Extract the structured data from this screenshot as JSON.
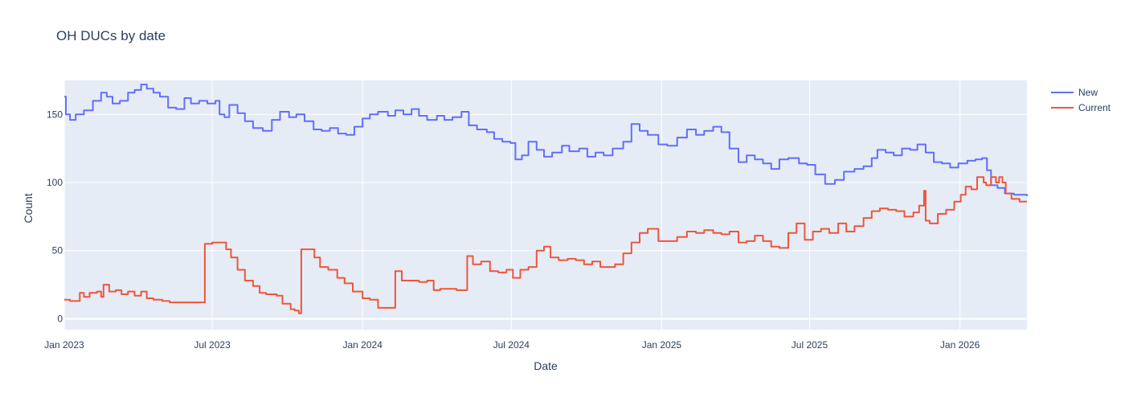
{
  "chart_data": {
    "type": "line",
    "title": "OH DUCs by date",
    "xlabel": "Date",
    "ylabel": "Count",
    "xlim": [
      "2023-01-01",
      "2026-03-24"
    ],
    "ylim": [
      -8,
      175
    ],
    "x_ticks": [
      {
        "date": "2023-01-01",
        "label": "Jan 2023"
      },
      {
        "date": "2023-07-01",
        "label": "Jul 2023"
      },
      {
        "date": "2024-01-01",
        "label": "Jan 2024"
      },
      {
        "date": "2024-07-01",
        "label": "Jul 2024"
      },
      {
        "date": "2025-01-01",
        "label": "Jan 2025"
      },
      {
        "date": "2025-07-01",
        "label": "Jul 2025"
      },
      {
        "date": "2026-01-01",
        "label": "Jan 2026"
      }
    ],
    "y_ticks": [
      0,
      50,
      100,
      150
    ],
    "grid": true,
    "legend_position": "top-right",
    "series": [
      {
        "name": "New",
        "color": "#636efa",
        "points": [
          [
            "2023-01-01",
            163
          ],
          [
            "2023-01-03",
            150
          ],
          [
            "2023-01-08",
            146
          ],
          [
            "2023-01-15",
            150
          ],
          [
            "2023-01-25",
            153
          ],
          [
            "2023-02-05",
            160
          ],
          [
            "2023-02-15",
            166
          ],
          [
            "2023-02-22",
            163
          ],
          [
            "2023-03-01",
            158
          ],
          [
            "2023-03-10",
            160
          ],
          [
            "2023-03-20",
            166
          ],
          [
            "2023-03-28",
            168
          ],
          [
            "2023-04-05",
            172
          ],
          [
            "2023-04-12",
            169
          ],
          [
            "2023-04-20",
            166
          ],
          [
            "2023-04-28",
            163
          ],
          [
            "2023-05-08",
            155
          ],
          [
            "2023-05-18",
            154
          ],
          [
            "2023-05-28",
            162
          ],
          [
            "2023-06-05",
            158
          ],
          [
            "2023-06-15",
            160
          ],
          [
            "2023-06-25",
            158
          ],
          [
            "2023-07-05",
            160
          ],
          [
            "2023-07-10",
            150
          ],
          [
            "2023-07-16",
            148
          ],
          [
            "2023-07-22",
            157
          ],
          [
            "2023-08-01",
            151
          ],
          [
            "2023-08-10",
            145
          ],
          [
            "2023-08-20",
            140
          ],
          [
            "2023-09-01",
            138
          ],
          [
            "2023-09-12",
            146
          ],
          [
            "2023-09-22",
            152
          ],
          [
            "2023-10-03",
            148
          ],
          [
            "2023-10-12",
            150
          ],
          [
            "2023-10-22",
            145
          ],
          [
            "2023-11-02",
            139
          ],
          [
            "2023-11-12",
            138
          ],
          [
            "2023-11-22",
            140
          ],
          [
            "2023-12-02",
            136
          ],
          [
            "2023-12-12",
            135
          ],
          [
            "2023-12-22",
            141
          ],
          [
            "2024-01-01",
            147
          ],
          [
            "2024-01-10",
            150
          ],
          [
            "2024-01-20",
            152
          ],
          [
            "2024-02-01",
            149
          ],
          [
            "2024-02-10",
            153
          ],
          [
            "2024-02-20",
            150
          ],
          [
            "2024-03-01",
            154
          ],
          [
            "2024-03-10",
            149
          ],
          [
            "2024-03-20",
            146
          ],
          [
            "2024-04-01",
            149
          ],
          [
            "2024-04-10",
            146
          ],
          [
            "2024-04-20",
            148
          ],
          [
            "2024-05-01",
            152
          ],
          [
            "2024-05-10",
            142
          ],
          [
            "2024-05-20",
            139
          ],
          [
            "2024-06-01",
            137
          ],
          [
            "2024-06-10",
            132
          ],
          [
            "2024-06-20",
            130
          ],
          [
            "2024-06-30",
            129
          ],
          [
            "2024-07-06",
            117
          ],
          [
            "2024-07-14",
            120
          ],
          [
            "2024-07-22",
            130
          ],
          [
            "2024-08-01",
            124
          ],
          [
            "2024-08-10",
            119
          ],
          [
            "2024-08-20",
            122
          ],
          [
            "2024-09-01",
            127
          ],
          [
            "2024-09-10",
            123
          ],
          [
            "2024-09-22",
            125
          ],
          [
            "2024-10-02",
            119
          ],
          [
            "2024-10-12",
            122
          ],
          [
            "2024-10-22",
            120
          ],
          [
            "2024-11-02",
            125
          ],
          [
            "2024-11-15",
            130
          ],
          [
            "2024-11-25",
            143
          ],
          [
            "2024-12-05",
            138
          ],
          [
            "2024-12-15",
            135
          ],
          [
            "2024-12-28",
            128
          ],
          [
            "2025-01-08",
            127
          ],
          [
            "2025-01-20",
            133
          ],
          [
            "2025-02-01",
            139
          ],
          [
            "2025-02-12",
            135
          ],
          [
            "2025-02-22",
            138
          ],
          [
            "2025-03-05",
            141
          ],
          [
            "2025-03-15",
            137
          ],
          [
            "2025-03-25",
            125
          ],
          [
            "2025-04-05",
            115
          ],
          [
            "2025-04-15",
            120
          ],
          [
            "2025-04-25",
            117
          ],
          [
            "2025-05-05",
            114
          ],
          [
            "2025-05-15",
            110
          ],
          [
            "2025-05-25",
            117
          ],
          [
            "2025-06-05",
            118
          ],
          [
            "2025-06-18",
            114
          ],
          [
            "2025-06-28",
            113
          ],
          [
            "2025-07-08",
            106
          ],
          [
            "2025-07-20",
            99
          ],
          [
            "2025-08-01",
            102
          ],
          [
            "2025-08-12",
            108
          ],
          [
            "2025-08-25",
            110
          ],
          [
            "2025-09-05",
            112
          ],
          [
            "2025-09-15",
            118
          ],
          [
            "2025-09-22",
            124
          ],
          [
            "2025-10-02",
            122
          ],
          [
            "2025-10-12",
            120
          ],
          [
            "2025-10-22",
            125
          ],
          [
            "2025-11-01",
            124
          ],
          [
            "2025-11-10",
            128
          ],
          [
            "2025-11-20",
            122
          ],
          [
            "2025-11-30",
            115
          ],
          [
            "2025-12-10",
            114
          ],
          [
            "2025-12-20",
            111
          ],
          [
            "2025-12-30",
            114
          ],
          [
            "2026-01-10",
            116
          ],
          [
            "2026-01-20",
            117
          ],
          [
            "2026-01-28",
            118
          ],
          [
            "2026-02-03",
            109
          ],
          [
            "2026-02-08",
            98
          ],
          [
            "2026-02-16",
            96
          ],
          [
            "2026-02-25",
            92
          ],
          [
            "2026-03-08",
            91
          ],
          [
            "2026-03-24",
            90
          ]
        ]
      },
      {
        "name": "Current",
        "color": "#ef553b",
        "points": [
          [
            "2023-01-01",
            14
          ],
          [
            "2023-01-06",
            14
          ],
          [
            "2023-01-08",
            13
          ],
          [
            "2023-01-15",
            13
          ],
          [
            "2023-01-20",
            19
          ],
          [
            "2023-01-25",
            16
          ],
          [
            "2023-02-01",
            19
          ],
          [
            "2023-02-10",
            20
          ],
          [
            "2023-02-15",
            16
          ],
          [
            "2023-02-18",
            25
          ],
          [
            "2023-02-25",
            20
          ],
          [
            "2023-03-05",
            21
          ],
          [
            "2023-03-12",
            18
          ],
          [
            "2023-03-20",
            20
          ],
          [
            "2023-03-28",
            17
          ],
          [
            "2023-04-05",
            20
          ],
          [
            "2023-04-12",
            15
          ],
          [
            "2023-04-20",
            14
          ],
          [
            "2023-05-01",
            13
          ],
          [
            "2023-05-10",
            12
          ],
          [
            "2023-05-20",
            12
          ],
          [
            "2023-06-01",
            12
          ],
          [
            "2023-06-10",
            12
          ],
          [
            "2023-06-20",
            12
          ],
          [
            "2023-06-22",
            55
          ],
          [
            "2023-07-01",
            56
          ],
          [
            "2023-07-12",
            56
          ],
          [
            "2023-07-18",
            51
          ],
          [
            "2023-07-24",
            45
          ],
          [
            "2023-08-01",
            36
          ],
          [
            "2023-08-10",
            28
          ],
          [
            "2023-08-20",
            24
          ],
          [
            "2023-08-28",
            19
          ],
          [
            "2023-09-05",
            18
          ],
          [
            "2023-09-18",
            17
          ],
          [
            "2023-09-25",
            11
          ],
          [
            "2023-10-05",
            7
          ],
          [
            "2023-10-10",
            6
          ],
          [
            "2023-10-15",
            4
          ],
          [
            "2023-10-18",
            51
          ],
          [
            "2023-10-26",
            51
          ],
          [
            "2023-11-03",
            45
          ],
          [
            "2023-11-10",
            38
          ],
          [
            "2023-11-20",
            36
          ],
          [
            "2023-12-01",
            30
          ],
          [
            "2023-12-10",
            26
          ],
          [
            "2023-12-20",
            20
          ],
          [
            "2024-01-01",
            15
          ],
          [
            "2024-01-10",
            14
          ],
          [
            "2024-01-20",
            8
          ],
          [
            "2024-02-01",
            8
          ],
          [
            "2024-02-08",
            8
          ],
          [
            "2024-02-10",
            35
          ],
          [
            "2024-02-18",
            28
          ],
          [
            "2024-02-28",
            28
          ],
          [
            "2024-03-10",
            27
          ],
          [
            "2024-03-20",
            28
          ],
          [
            "2024-03-28",
            21
          ],
          [
            "2024-04-05",
            22
          ],
          [
            "2024-04-15",
            22
          ],
          [
            "2024-04-25",
            21
          ],
          [
            "2024-05-05",
            21
          ],
          [
            "2024-05-08",
            46
          ],
          [
            "2024-05-15",
            40
          ],
          [
            "2024-05-25",
            42
          ],
          [
            "2024-06-05",
            35
          ],
          [
            "2024-06-15",
            34
          ],
          [
            "2024-06-25",
            36
          ],
          [
            "2024-07-03",
            30
          ],
          [
            "2024-07-12",
            36
          ],
          [
            "2024-07-22",
            38
          ],
          [
            "2024-08-01",
            50
          ],
          [
            "2024-08-10",
            53
          ],
          [
            "2024-08-18",
            45
          ],
          [
            "2024-08-28",
            43
          ],
          [
            "2024-09-08",
            44
          ],
          [
            "2024-09-18",
            43
          ],
          [
            "2024-09-28",
            40
          ],
          [
            "2024-10-08",
            42
          ],
          [
            "2024-10-18",
            38
          ],
          [
            "2024-10-28",
            38
          ],
          [
            "2024-11-05",
            40
          ],
          [
            "2024-11-15",
            48
          ],
          [
            "2024-11-25",
            56
          ],
          [
            "2024-12-05",
            63
          ],
          [
            "2024-12-15",
            66
          ],
          [
            "2024-12-28",
            57
          ],
          [
            "2025-01-08",
            57
          ],
          [
            "2025-01-20",
            60
          ],
          [
            "2025-02-01",
            64
          ],
          [
            "2025-02-12",
            63
          ],
          [
            "2025-02-22",
            65
          ],
          [
            "2025-03-05",
            63
          ],
          [
            "2025-03-15",
            62
          ],
          [
            "2025-03-25",
            64
          ],
          [
            "2025-04-05",
            56
          ],
          [
            "2025-04-15",
            57
          ],
          [
            "2025-04-25",
            61
          ],
          [
            "2025-05-05",
            57
          ],
          [
            "2025-05-15",
            53
          ],
          [
            "2025-05-25",
            52
          ],
          [
            "2025-06-05",
            63
          ],
          [
            "2025-06-15",
            70
          ],
          [
            "2025-06-25",
            58
          ],
          [
            "2025-07-05",
            64
          ],
          [
            "2025-07-15",
            66
          ],
          [
            "2025-07-25",
            63
          ],
          [
            "2025-08-05",
            70
          ],
          [
            "2025-08-15",
            64
          ],
          [
            "2025-08-25",
            68
          ],
          [
            "2025-09-05",
            74
          ],
          [
            "2025-09-15",
            79
          ],
          [
            "2025-09-25",
            81
          ],
          [
            "2025-10-05",
            80
          ],
          [
            "2025-10-15",
            79
          ],
          [
            "2025-10-25",
            75
          ],
          [
            "2025-11-05",
            78
          ],
          [
            "2025-11-12",
            83
          ],
          [
            "2025-11-18",
            94
          ],
          [
            "2025-11-20",
            72
          ],
          [
            "2025-11-25",
            70
          ],
          [
            "2025-12-05",
            77
          ],
          [
            "2025-12-15",
            80
          ],
          [
            "2025-12-25",
            86
          ],
          [
            "2026-01-02",
            91
          ],
          [
            "2026-01-08",
            97
          ],
          [
            "2026-01-15",
            95
          ],
          [
            "2026-01-22",
            104
          ],
          [
            "2026-01-30",
            100
          ],
          [
            "2026-02-02",
            98
          ],
          [
            "2026-02-08",
            104
          ],
          [
            "2026-02-14",
            100
          ],
          [
            "2026-02-18",
            104
          ],
          [
            "2026-02-22",
            100
          ],
          [
            "2026-02-26",
            92
          ],
          [
            "2026-03-05",
            88
          ],
          [
            "2026-03-15",
            86
          ],
          [
            "2026-03-24",
            86
          ]
        ]
      }
    ]
  }
}
